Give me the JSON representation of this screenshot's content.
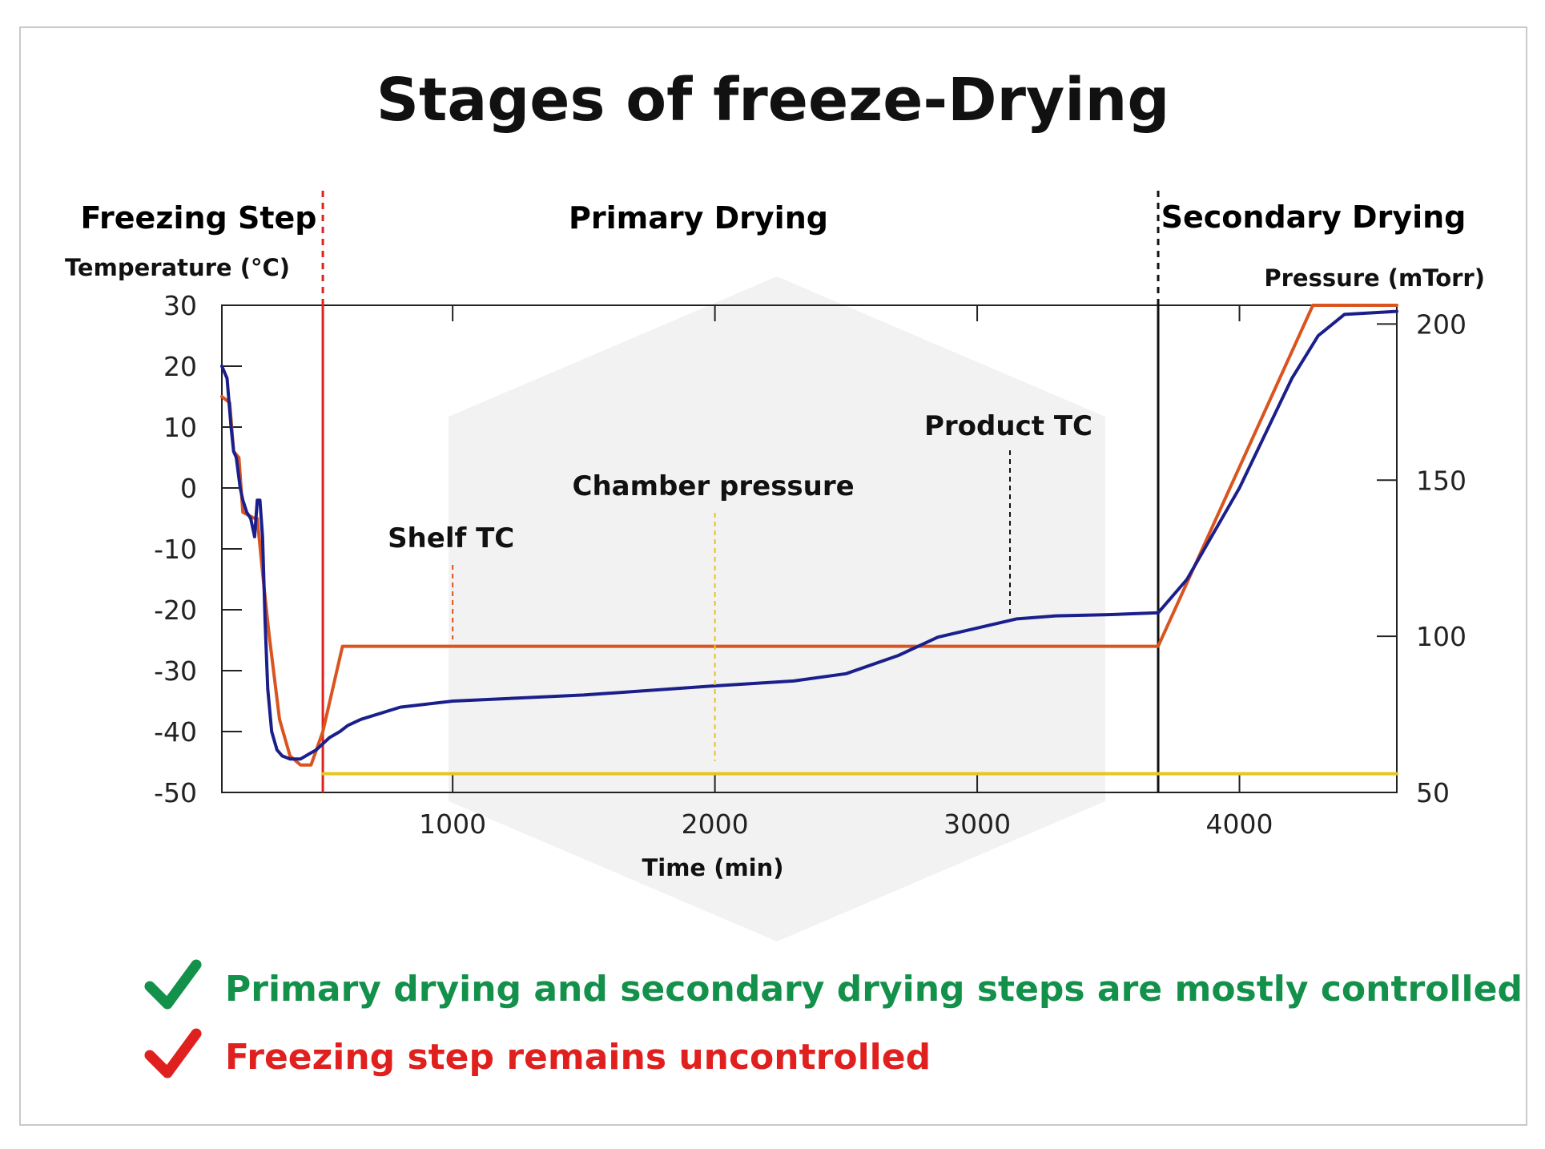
{
  "title": "Stages of freeze-Drying",
  "phases": {
    "freezing": "Freezing Step",
    "primary": "Primary Drying",
    "secondary": "Secondary Drying"
  },
  "colors": {
    "shelf": "#d9541e",
    "product": "#1a1f8c",
    "pressure": "#e8c51c",
    "red": "#e0201e",
    "green": "#13904a"
  },
  "notes": {
    "controlled": "Primary drying and secondary drying steps are mostly controlled",
    "uncontrolled": "Freezing step remains uncontrolled"
  },
  "chart_data": {
    "type": "line",
    "title": "Stages of freeze-Drying",
    "xlabel": "Time (min)",
    "ylabel": "Temperature (°C)",
    "y2label": "Pressure (mTorr)",
    "xlim": [
      120,
      4600
    ],
    "ylim": [
      -50,
      30
    ],
    "y2lim": [
      50,
      206
    ],
    "x_ticks": [
      1000,
      2000,
      3000,
      4000
    ],
    "y_ticks": [
      30,
      20,
      10,
      0,
      -10,
      -20,
      -30,
      -40,
      -50
    ],
    "y2_ticks": [
      200,
      150,
      100,
      50
    ],
    "phase_boundaries": [
      {
        "x": 505,
        "color": "red"
      },
      {
        "x": 3690,
        "color": "black"
      }
    ],
    "annotations": [
      {
        "text": "Shelf TC",
        "x": 1000,
        "series": "Shelf TC"
      },
      {
        "text": "Chamber pressure",
        "x": 2000,
        "series": "Chamber pressure"
      },
      {
        "text": "Product TC",
        "x": 3125,
        "series": "Product TC"
      }
    ],
    "series": [
      {
        "name": "Shelf TC",
        "axis": "left",
        "x": [
          120,
          150,
          165,
          185,
          200,
          245,
          255,
          280,
          300,
          340,
          380,
          420,
          460,
          505,
          580,
          3690,
          4280,
          4600
        ],
        "y": [
          15,
          14,
          6,
          5,
          -4,
          -5,
          -5,
          -16,
          -24,
          -38,
          -44,
          -45.5,
          -45.5,
          -40,
          -26,
          -26,
          30,
          30
        ]
      },
      {
        "name": "Product TC",
        "axis": "left",
        "x": [
          120,
          140,
          155,
          165,
          175,
          190,
          200,
          215,
          230,
          245,
          255,
          265,
          275,
          285,
          295,
          310,
          330,
          350,
          380,
          420,
          480,
          530,
          570,
          600,
          650,
          800,
          1000,
          1500,
          2000,
          2300,
          2500,
          2700,
          2850,
          3000,
          3150,
          3300,
          3500,
          3690,
          3800,
          4000,
          4200,
          4300,
          4400,
          4600
        ],
        "y": [
          20,
          18,
          10,
          6,
          5,
          0,
          -2,
          -4,
          -5,
          -8,
          -2,
          -2,
          -8,
          -22,
          -33,
          -40,
          -43,
          -44,
          -44.5,
          -44.5,
          -43,
          -41,
          -40,
          -39,
          -38,
          -36,
          -35,
          -34,
          -32.5,
          -31.7,
          -30.5,
          -27.5,
          -24.5,
          -23,
          -21.5,
          -21,
          -20.8,
          -20.5,
          -15,
          0,
          18,
          25,
          28.5,
          29
        ]
      },
      {
        "name": "Chamber pressure",
        "axis": "right",
        "x": [
          505,
          4600
        ],
        "y": [
          56,
          56
        ]
      }
    ]
  }
}
